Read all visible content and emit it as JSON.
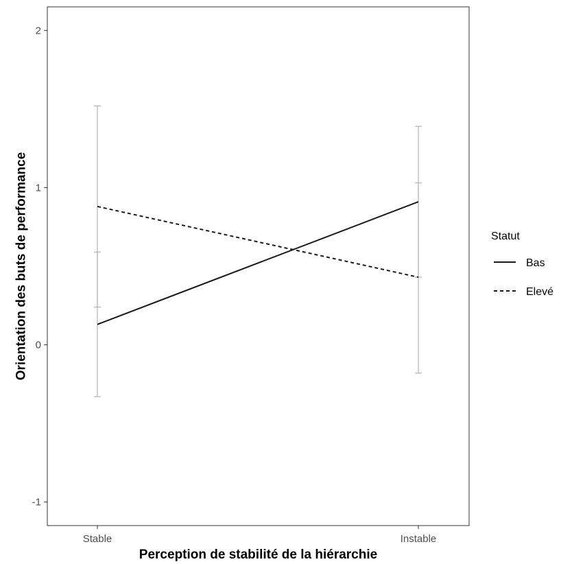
{
  "chart_data": {
    "type": "line",
    "title": "",
    "xlabel": "Perception de stabilité de la hiérarchie",
    "ylabel": "Orientation des buts de performance",
    "categories": [
      "Stable",
      "Instable"
    ],
    "yticks": [
      "-1",
      "0",
      "1",
      "2"
    ],
    "ylim": [
      -1.15,
      2.15
    ],
    "grid": false,
    "legend_title": "Statut",
    "legend_position": "right",
    "series": [
      {
        "name": "Bas",
        "linestyle": "solid",
        "values": [
          0.13,
          0.91
        ],
        "error_low": [
          -0.33,
          0.43
        ],
        "error_high": [
          0.59,
          1.39
        ]
      },
      {
        "name": "Elevé",
        "linestyle": "dashed",
        "values": [
          0.88,
          0.43
        ],
        "error_low": [
          0.24,
          -0.18
        ],
        "error_high": [
          1.52,
          1.03
        ]
      }
    ],
    "colors": {
      "line": "#1a1a1a",
      "errorbar": "#b3b3b3",
      "panel_border": "#333333"
    }
  }
}
